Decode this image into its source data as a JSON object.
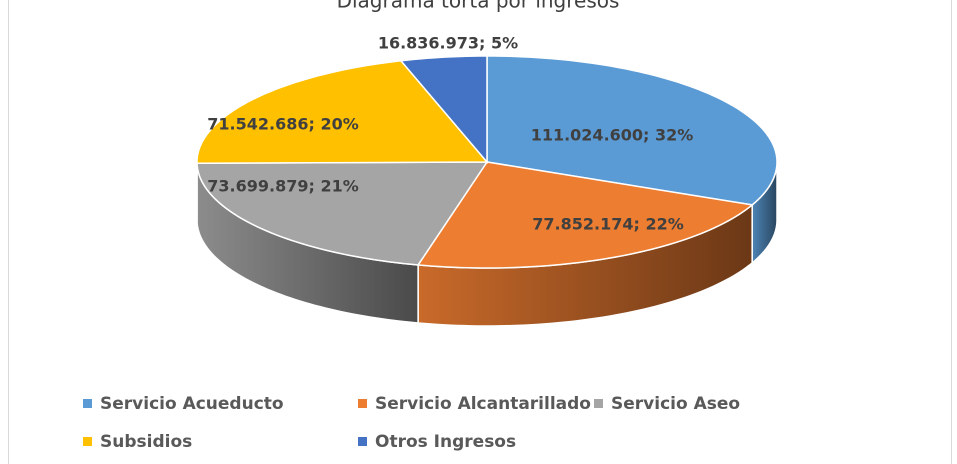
{
  "chart_data": {
    "type": "pie3d",
    "title": "Diagrama torta por ingresos",
    "categories": [
      "Servicio Acueducto",
      "Servicio Alcantarillado",
      "Servicio Aseo",
      "Subsidios",
      "Otros Ingresos"
    ],
    "values": [
      111024600,
      77852174,
      73699879,
      71542686,
      16836973
    ],
    "value_labels": [
      "111.024.600; 32%",
      "77.852.174; 22%",
      "73.699.879; 21%",
      "71.542.686; 20%",
      "16.836.973; 5%"
    ],
    "colors": [
      "#5b9bd5",
      "#ed7d31",
      "#a5a5a5",
      "#ffc000",
      "#4472c4"
    ],
    "legend": "bottom"
  }
}
